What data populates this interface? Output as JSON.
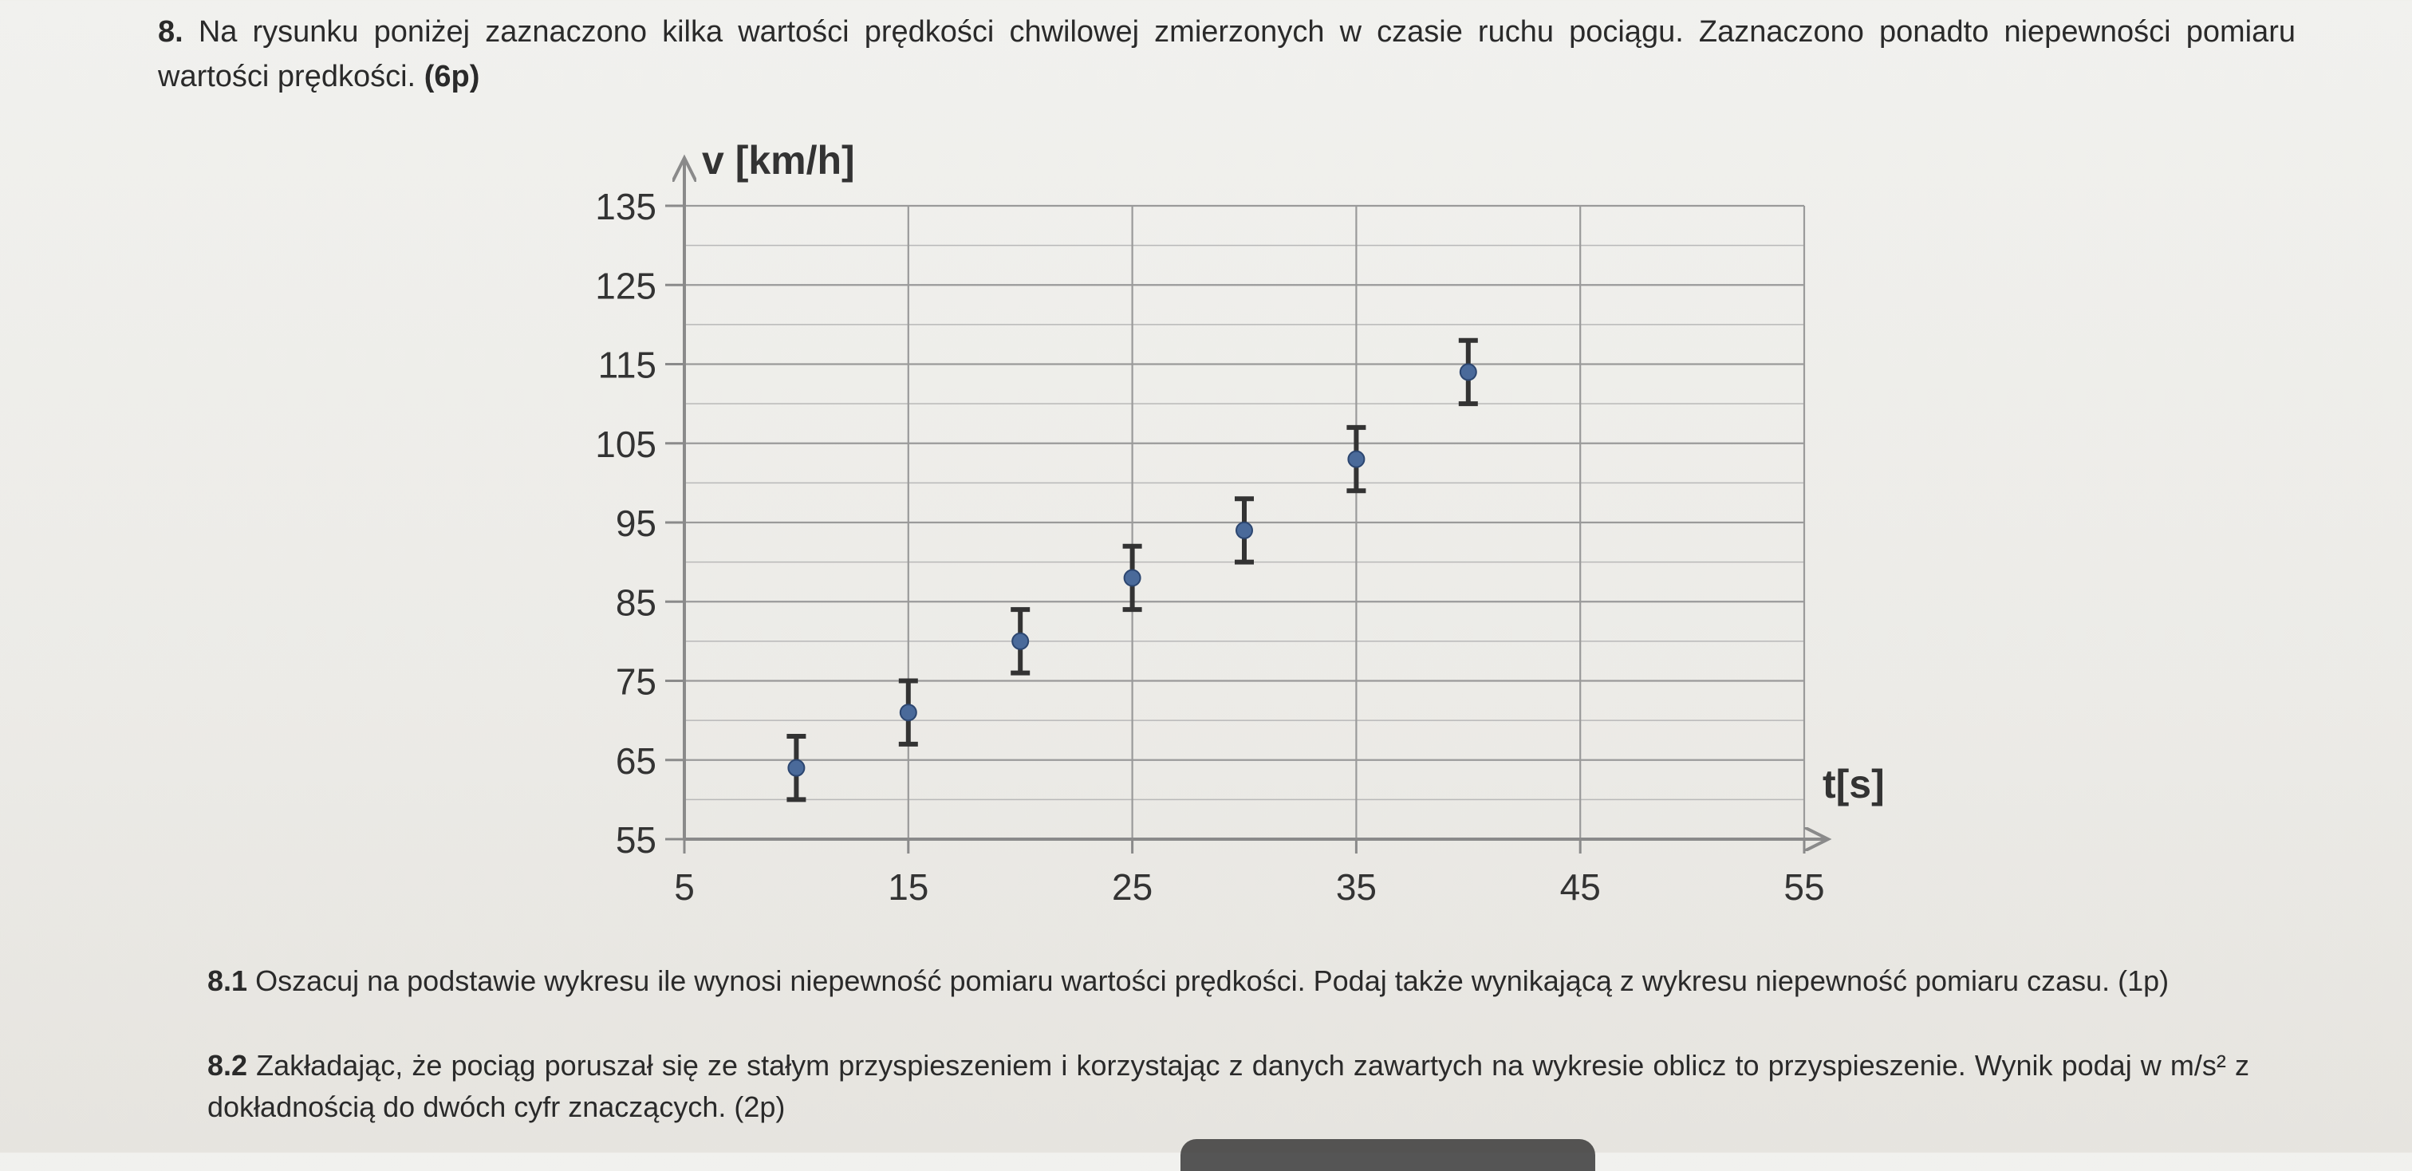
{
  "task": {
    "number": "8.",
    "text": "Na rysunku poniżej zaznaczono kilka wartości prędkości chwilowej zmierzonych w czasie ruchu pociągu. Zaznaczono ponadto niepewności pomiaru wartości prędkości.",
    "points": "(6p)"
  },
  "chart_data": {
    "type": "scatter",
    "xlabel": "t[s]",
    "ylabel": "v [km/h]",
    "xlim": [
      5,
      55
    ],
    "ylim": [
      55,
      135
    ],
    "x_ticks": [
      5,
      15,
      25,
      35,
      45,
      55
    ],
    "y_ticks": [
      55,
      65,
      75,
      85,
      95,
      105,
      115,
      125,
      135
    ],
    "grid": true,
    "error_bars": "y",
    "series": [
      {
        "points": [
          {
            "x": 10,
            "y": 64,
            "err": 4
          },
          {
            "x": 15,
            "y": 71,
            "err": 4
          },
          {
            "x": 20,
            "y": 80,
            "err": 4
          },
          {
            "x": 25,
            "y": 88,
            "err": 4
          },
          {
            "x": 30,
            "y": 94,
            "err": 4
          },
          {
            "x": 35,
            "y": 103,
            "err": 4
          },
          {
            "x": 40,
            "y": 114,
            "err": 4
          }
        ],
        "color": "#4a6a9a"
      }
    ]
  },
  "questions": [
    {
      "number": "8.1",
      "text": "Oszacuj na podstawie wykresu ile wynosi niepewność pomiaru wartości prędkości. Podaj także wynikającą z wykresu niepewność pomiaru czasu. (1p)"
    },
    {
      "number": "8.2",
      "text": "Zakładając, że pociąg poruszał się ze stałym przyspieszeniem i korzystając z danych zawartych na wykresie oblicz to przyspieszenie. Wynik podaj w m/s² z dokładnością do dwóch cyfr znaczących. (2p)"
    }
  ]
}
